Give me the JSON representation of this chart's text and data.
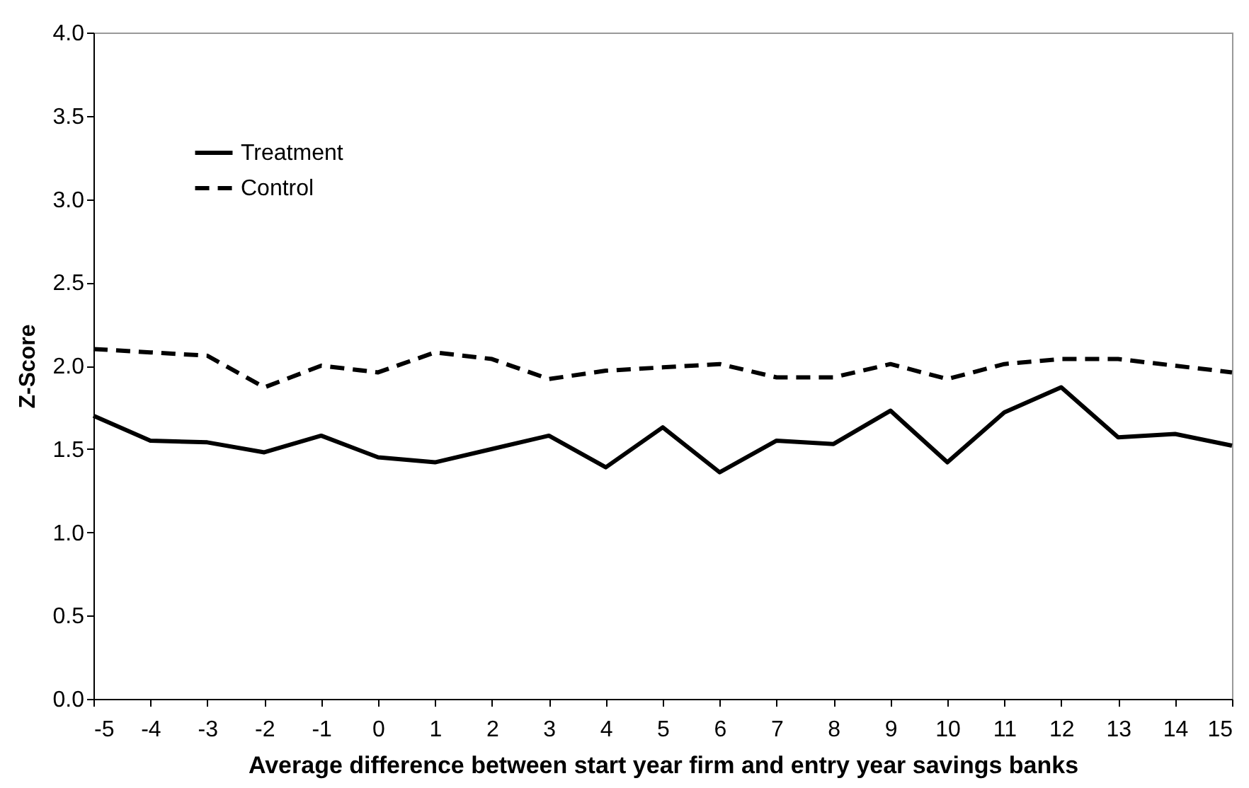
{
  "chart_data": {
    "type": "line",
    "xlabel": "Average difference between start year firm  and entry year savings banks",
    "ylabel": "Z-Score",
    "x": [
      -5,
      -4,
      -3,
      -2,
      -1,
      0,
      1,
      2,
      3,
      4,
      5,
      6,
      7,
      8,
      9,
      10,
      11,
      12,
      13,
      14,
      15
    ],
    "series": [
      {
        "name": "Treatment",
        "color": "#000000",
        "line_style": "solid",
        "values": [
          1.7,
          1.55,
          1.54,
          1.48,
          1.58,
          1.45,
          1.42,
          1.5,
          1.58,
          1.39,
          1.63,
          1.36,
          1.55,
          1.53,
          1.73,
          1.42,
          1.72,
          1.87,
          1.57,
          1.59,
          1.52
        ]
      },
      {
        "name": "Control",
        "color": "#000000",
        "line_style": "dashed",
        "values": [
          2.1,
          2.08,
          2.06,
          1.87,
          2.0,
          1.96,
          2.08,
          2.04,
          1.92,
          1.97,
          1.99,
          2.01,
          1.93,
          1.93,
          2.01,
          1.92,
          2.01,
          2.04,
          2.04,
          2.0,
          1.96
        ]
      }
    ],
    "xlim": [
      -5,
      15
    ],
    "xticks": [
      -5,
      -4,
      -3,
      -2,
      -1,
      0,
      1,
      2,
      3,
      4,
      5,
      6,
      7,
      8,
      9,
      10,
      11,
      12,
      13,
      14,
      15
    ],
    "ylim": [
      0,
      4.0
    ],
    "yticks": [
      {
        "value": 0,
        "label": "0.0"
      },
      {
        "value": 0.5,
        "label": "0.5"
      },
      {
        "value": 1,
        "label": "1.0"
      },
      {
        "value": 1.5,
        "label": "1.5"
      },
      {
        "value": 2,
        "label": "2.0"
      },
      {
        "value": 2.5,
        "label": "2.5"
      },
      {
        "value": 3,
        "label": "3.0"
      },
      {
        "value": 3.5,
        "label": "3.5"
      },
      {
        "value": 4,
        "label": "4.0"
      }
    ],
    "grid": false,
    "legend": "top left",
    "marker": "none"
  }
}
